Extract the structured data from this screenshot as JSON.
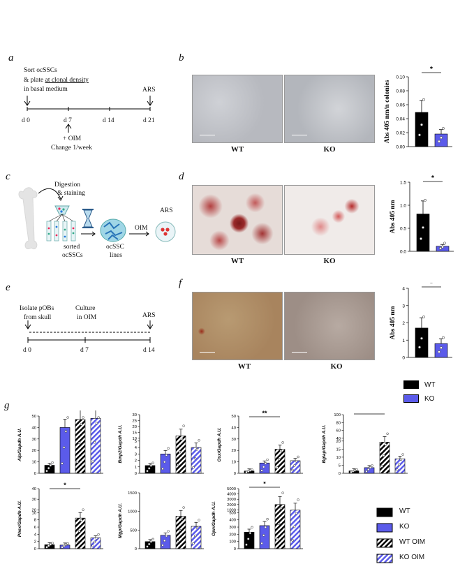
{
  "panels": {
    "a": {
      "label": "a",
      "text1": "Sort ocSSCs",
      "text2_prefix": "& plate ",
      "text2_underline": "at clonal density",
      "text3": "in basal medium",
      "ars": "ARS",
      "ticks": [
        "d 0",
        "d 7",
        "d 14",
        "d 21"
      ],
      "oim": "+ OIM",
      "change": "Change 1/week"
    },
    "b": {
      "label": "b",
      "caption_wt": "WT",
      "caption_ko": "KO"
    },
    "c": {
      "label": "c",
      "digestion": "Digestion",
      "staining": "& staining",
      "sorted1": "sorted",
      "sorted2": "ocSSCs",
      "ocssc1": "ocSSC",
      "ocssc2": "lines",
      "oim": "OIM",
      "ars": "ARS"
    },
    "d": {
      "label": "d",
      "caption_wt": "WT",
      "caption_ko": "KO"
    },
    "e": {
      "label": "e",
      "isolate1": "Isolate pOBs",
      "isolate2": "from skull",
      "culture1": "Culture",
      "culture2": "in OIM",
      "ars": "ARS",
      "ticks": [
        "d 0",
        "d 7",
        "d 14"
      ]
    },
    "f": {
      "label": "f",
      "caption_wt": "WT",
      "caption_ko": "KO"
    },
    "g": {
      "label": "g"
    }
  },
  "legend_top": [
    {
      "label": "WT",
      "color": "#000000"
    },
    {
      "label": "KO",
      "color": "#5b5bea"
    }
  ],
  "legend_bottom": [
    {
      "label": "WT",
      "pattern": "solid-black"
    },
    {
      "label": "KO",
      "pattern": "solid-blue"
    },
    {
      "label": "WT OIM",
      "pattern": "hatch-black"
    },
    {
      "label": "KO OIM",
      "pattern": "hatch-blue"
    }
  ],
  "chart_data": [
    {
      "id": "b",
      "type": "bar",
      "ylabel": "Abs 405 nm/n colonies",
      "categories": [
        "WT",
        "KO"
      ],
      "values": [
        0.049,
        0.018
      ],
      "ylim": [
        0,
        0.1
      ],
      "yticks": [
        "0.00",
        "0.02",
        "0.04",
        "0.06",
        "0.08",
        "0.10"
      ],
      "signif": "*"
    },
    {
      "id": "d",
      "type": "bar",
      "ylabel": "Abs 405 nm",
      "categories": [
        "WT",
        "KO"
      ],
      "values": [
        0.81,
        0.11
      ],
      "ylim": [
        0,
        1.5
      ],
      "yticks": [
        "0.0",
        "0.5",
        "1.0",
        "1.5"
      ],
      "signif": "*"
    },
    {
      "id": "f",
      "type": "bar",
      "ylabel": "Abs 405 nm",
      "categories": [
        "WT",
        "KO"
      ],
      "values": [
        1.7,
        0.8
      ],
      "ylim": [
        0,
        4
      ],
      "yticks": [
        "0",
        "1",
        "2",
        "3",
        "4"
      ],
      "signif": "*"
    },
    {
      "id": "alp",
      "type": "bar",
      "ylabel": "Alp/Gapdh A.U.",
      "categories": [
        "WT",
        "KO",
        "WT OIM",
        "KO OIM"
      ],
      "values": [
        7,
        40,
        47,
        48
      ],
      "yticks": [
        "0",
        "10",
        "20",
        "30",
        "40",
        "50"
      ],
      "ylim": [
        0,
        50
      ],
      "signif": ""
    },
    {
      "id": "bmp2",
      "type": "bar",
      "ylabel": "Bmp2/Gapdh A.U.",
      "categories": [
        "WT",
        "KO",
        "WT OIM",
        "KO OIM"
      ],
      "values": [
        1.2,
        3,
        12,
        4
      ],
      "yticks": [
        "0",
        "1",
        "2",
        "3",
        "4",
        "5",
        "10",
        "15",
        "20",
        "25",
        "30"
      ],
      "signif": ""
    },
    {
      "id": "osx",
      "type": "bar",
      "ylabel": "Osx/Gapdh A.U.",
      "categories": [
        "WT",
        "KO",
        "WT OIM",
        "KO OIM"
      ],
      "values": [
        2,
        9,
        21,
        11
      ],
      "yticks": [
        "0",
        "10",
        "20",
        "30",
        "40",
        "50"
      ],
      "ylim": [
        0,
        50
      ],
      "signif": "**"
    },
    {
      "id": "bglap",
      "type": "bar",
      "ylabel": "Bglap/Gapdh A.U.",
      "categories": [
        "WT",
        "KO",
        "WT OIM",
        "KO OIM"
      ],
      "values": [
        1.5,
        3.5,
        30,
        9
      ],
      "yticks": [
        "0",
        "5",
        "10",
        "15",
        "20",
        "40",
        "60",
        "80",
        "100"
      ],
      "signif": "**"
    },
    {
      "id": "phex",
      "type": "bar",
      "ylabel": "Phex/Gapdh A.U.",
      "categories": [
        "WT",
        "KO",
        "WT OIM",
        "KO OIM"
      ],
      "values": [
        1.1,
        1,
        8.5,
        3
      ],
      "yticks": [
        "0",
        "2",
        "4",
        "6",
        "8",
        "10",
        "20",
        "30",
        "40"
      ],
      "signif": "*"
    },
    {
      "id": "mgp",
      "type": "bar",
      "ylabel": "Mgp/Gapdh A.U.",
      "categories": [
        "WT",
        "KO",
        "WT OIM",
        "KO OIM"
      ],
      "values": [
        190,
        360,
        870,
        600
      ],
      "yticks": [
        "0",
        "500",
        "1000",
        "1500"
      ],
      "ylim": [
        0,
        1500
      ],
      "signif": ""
    },
    {
      "id": "opn",
      "type": "bar",
      "ylabel": "Opn/Gapdh A.U.",
      "categories": [
        "WT",
        "KO",
        "WT OIM",
        "KO OIM"
      ],
      "values": [
        230,
        320,
        2000,
        950
      ],
      "yticks": [
        "0",
        "100",
        "200",
        "300",
        "400",
        "500",
        "1000",
        "2000",
        "3000",
        "4000",
        "5000"
      ],
      "signif": "*"
    }
  ]
}
